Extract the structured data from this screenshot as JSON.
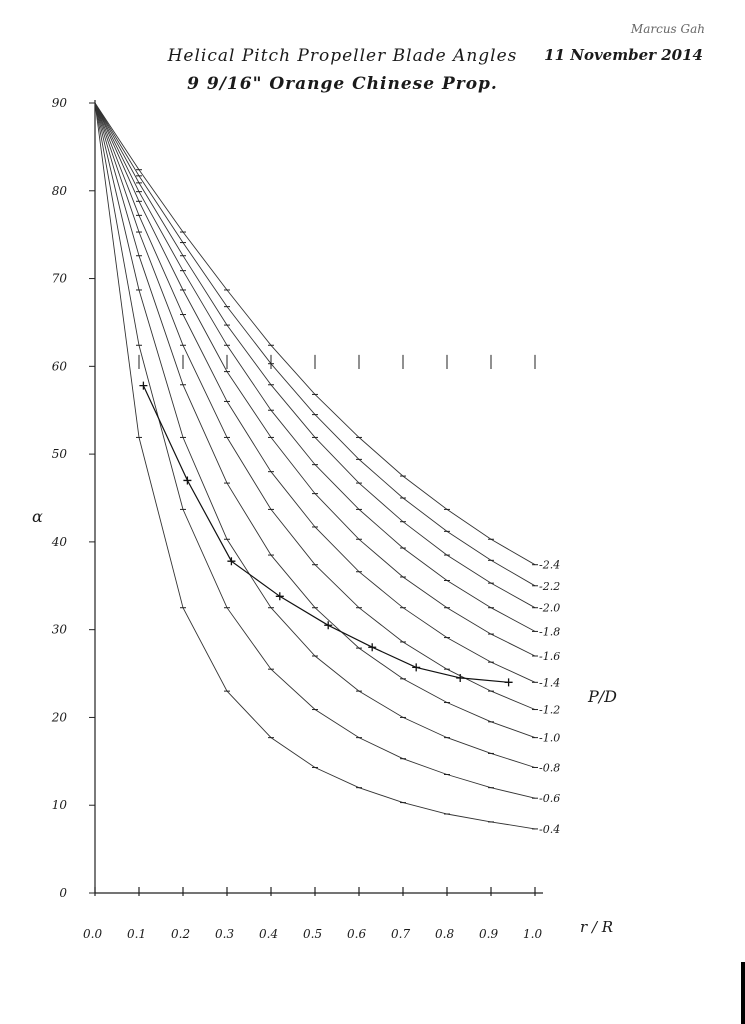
{
  "header": {
    "title": "Helical Pitch Propeller Blade Angles",
    "subtitle": "9 9/16\" Orange Chinese Prop.",
    "author": "Marcus Gah",
    "date": "11 November 2014"
  },
  "chart_data": {
    "type": "line",
    "title": "Helical Pitch Propeller Blade Angles",
    "subtitle": "9 9/16\" Orange Chinese Prop.",
    "xlabel": "r / R",
    "ylabel": "α",
    "legend_title": "P/D",
    "xlim": [
      0,
      1.0
    ],
    "ylim": [
      0,
      90
    ],
    "x_ticks": [
      "0.0",
      "0.1",
      "0.2",
      "0.3",
      "0.4",
      "0.5",
      "0.6",
      "0.7",
      "0.8",
      "0.9",
      "1.0"
    ],
    "y_ticks": [
      "0",
      "10",
      "20",
      "30",
      "40",
      "50",
      "60",
      "70",
      "80",
      "90"
    ],
    "x": [
      0.1,
      0.2,
      0.3,
      0.4,
      0.5,
      0.6,
      0.7,
      0.8,
      0.9,
      1.0
    ],
    "series": [
      {
        "name": "0.4",
        "values": [
          51.9,
          32.5,
          23.0,
          17.7,
          14.3,
          12.0,
          10.3,
          9.0,
          8.1,
          7.3
        ]
      },
      {
        "name": "0.6",
        "values": [
          62.4,
          43.7,
          32.5,
          25.5,
          20.9,
          17.7,
          15.3,
          13.5,
          12.0,
          10.8
        ]
      },
      {
        "name": "0.8",
        "values": [
          68.7,
          51.9,
          40.3,
          32.5,
          27.0,
          23.0,
          20.0,
          17.7,
          15.9,
          14.3
        ]
      },
      {
        "name": "1.0",
        "values": [
          72.6,
          57.9,
          46.7,
          38.5,
          32.5,
          27.9,
          24.4,
          21.7,
          19.5,
          17.7
        ]
      },
      {
        "name": "1.2",
        "values": [
          75.3,
          62.4,
          51.9,
          43.7,
          37.4,
          32.5,
          28.6,
          25.5,
          23.0,
          20.9
        ]
      },
      {
        "name": "1.4",
        "values": [
          77.2,
          65.9,
          56.0,
          48.0,
          41.7,
          36.6,
          32.5,
          29.1,
          26.3,
          24.0
        ]
      },
      {
        "name": "1.6",
        "values": [
          78.8,
          68.7,
          59.4,
          51.9,
          45.5,
          40.3,
          36.0,
          32.5,
          29.5,
          27.0
        ]
      },
      {
        "name": "1.8",
        "values": [
          79.9,
          70.9,
          62.4,
          55.0,
          48.8,
          43.7,
          39.3,
          35.6,
          32.5,
          29.8
        ]
      },
      {
        "name": "2.0",
        "values": [
          80.9,
          72.6,
          64.7,
          57.9,
          51.9,
          46.7,
          42.3,
          38.5,
          35.3,
          32.5
        ]
      },
      {
        "name": "2.2",
        "values": [
          81.7,
          74.1,
          66.8,
          60.3,
          54.5,
          49.4,
          45.0,
          41.2,
          37.9,
          35.0
        ]
      },
      {
        "name": "2.4",
        "values": [
          82.4,
          75.3,
          68.7,
          62.4,
          56.8,
          51.9,
          47.5,
          43.7,
          40.3,
          37.4
        ]
      }
    ],
    "measured": {
      "name": "9 9/16\" Orange Chinese Prop.",
      "x": [
        0.11,
        0.21,
        0.31,
        0.42,
        0.53,
        0.63,
        0.73,
        0.83,
        0.94
      ],
      "values": [
        57.8,
        47.0,
        37.8,
        33.8,
        30.5,
        28.0,
        25.7,
        24.5,
        24.0
      ]
    },
    "grid": false,
    "legend_position": "right (labels at curve ends)"
  }
}
